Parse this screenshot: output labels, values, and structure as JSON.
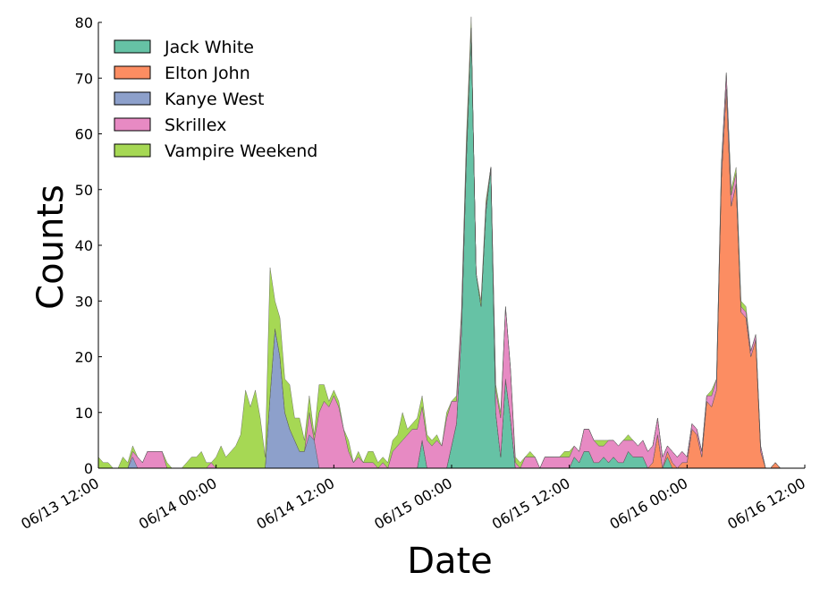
{
  "chart_data": {
    "type": "area",
    "stacked": true,
    "xlabel": "Date",
    "ylabel": "Counts",
    "ylim": [
      0,
      80
    ],
    "xlim": [
      "06/13 12:00",
      "06/16 12:00"
    ],
    "x_start": "06/13 12:00",
    "x_step": "1h",
    "yticks": [
      "0",
      "10",
      "20",
      "30",
      "40",
      "50",
      "60",
      "70",
      "80"
    ],
    "xticks": [
      "06/13 12:00",
      "06/14 00:00",
      "06/14 12:00",
      "06/15 00:00",
      "06/15 12:00",
      "06/16 00:00",
      "06/16 12:00"
    ],
    "legend_position": "top-left",
    "grid": false,
    "series": [
      {
        "name": "Jack White",
        "color": "#66c2a5",
        "values": [
          0,
          0,
          0,
          0,
          0,
          0,
          0,
          0,
          0,
          0,
          0,
          0,
          0,
          0,
          0,
          0,
          0,
          0,
          0,
          0,
          0,
          0,
          0,
          0,
          0,
          0,
          0,
          0,
          0,
          0,
          0,
          0,
          0,
          0,
          0,
          0,
          0,
          0,
          0,
          0,
          0,
          0,
          0,
          0,
          0,
          0,
          0,
          0,
          0,
          0,
          0,
          0,
          0,
          0,
          0,
          0,
          0,
          0,
          0,
          0,
          0,
          0,
          0,
          0,
          0,
          0,
          5,
          0,
          0,
          0,
          0,
          0,
          4,
          8,
          24,
          55,
          79,
          35,
          29,
          46,
          54,
          10,
          2,
          16,
          9,
          0,
          0,
          0,
          0,
          0,
          0,
          0,
          0,
          0,
          0,
          0,
          0,
          2,
          1,
          3,
          3,
          1,
          1,
          2,
          1,
          2,
          1,
          1,
          3,
          2,
          2,
          2,
          0,
          0,
          0,
          0,
          2,
          0,
          0,
          0,
          0,
          0,
          0,
          0,
          0,
          0,
          0,
          0,
          0,
          0,
          0,
          0,
          0,
          0,
          0,
          0,
          0,
          0,
          0,
          0,
          0,
          0,
          0,
          0,
          0
        ]
      },
      {
        "name": "Elton John",
        "color": "#fc8d62",
        "values": [
          0,
          0,
          0,
          0,
          0,
          0,
          0,
          0,
          0,
          0,
          0,
          0,
          0,
          0,
          0,
          0,
          0,
          0,
          0,
          0,
          0,
          0,
          0,
          0,
          0,
          0,
          0,
          0,
          0,
          0,
          0,
          0,
          0,
          0,
          0,
          0,
          0,
          0,
          0,
          0,
          0,
          0,
          0,
          0,
          0,
          0,
          0,
          0,
          0,
          0,
          0,
          0,
          0,
          0,
          0,
          0,
          0,
          0,
          0,
          0,
          0,
          0,
          0,
          0,
          0,
          0,
          0,
          0,
          0,
          0,
          0,
          0,
          0,
          0,
          0,
          0,
          0,
          0,
          0,
          0,
          0,
          0,
          0,
          0,
          0,
          0,
          0,
          0,
          0,
          0,
          0,
          0,
          0,
          0,
          0,
          0,
          0,
          0,
          0,
          0,
          0,
          0,
          0,
          0,
          0,
          0,
          0,
          0,
          0,
          0,
          0,
          0,
          0,
          1,
          6,
          0,
          1,
          1,
          0,
          1,
          1,
          7,
          6,
          2,
          12,
          11,
          14,
          52,
          68,
          47,
          51,
          28,
          27,
          20,
          23,
          3,
          0,
          0,
          1,
          0,
          0,
          0,
          0,
          0,
          0,
          0,
          0,
          0,
          5,
          7
        ]
      },
      {
        "name": "Kanye West",
        "color": "#8da0cb",
        "values": [
          0,
          0,
          0,
          0,
          0,
          0,
          0,
          2,
          0,
          0,
          0,
          0,
          0,
          0,
          0,
          0,
          0,
          0,
          0,
          0,
          0,
          0,
          0,
          0,
          0,
          0,
          0,
          0,
          0,
          0,
          0,
          0,
          0,
          0,
          0,
          13,
          25,
          20,
          10,
          7,
          5,
          3,
          3,
          6,
          5,
          0,
          0,
          0,
          0,
          0,
          0,
          0,
          0,
          0,
          0,
          0,
          0,
          0,
          0,
          0,
          0,
          0,
          0,
          0,
          0,
          0,
          0,
          0,
          0,
          0,
          0,
          0,
          0,
          0,
          0,
          0,
          0,
          0,
          0,
          0,
          0,
          0,
          0,
          0,
          0,
          0,
          0,
          0,
          0,
          0,
          0,
          0,
          0,
          0,
          0,
          0,
          0,
          0,
          0,
          0,
          0,
          0,
          0,
          0,
          0,
          0,
          0,
          0,
          0,
          0,
          0,
          0,
          0,
          0,
          0,
          0,
          0,
          0,
          0,
          0,
          0,
          0,
          0,
          0,
          0,
          0,
          0,
          0,
          0,
          0,
          0,
          0,
          0,
          0,
          0,
          0,
          0,
          0,
          0,
          0,
          0,
          0,
          0,
          0,
          0,
          0,
          0,
          0,
          0,
          0
        ]
      },
      {
        "name": "Skrillex",
        "color": "#e78ac3",
        "values": [
          0,
          0,
          0,
          0,
          0,
          0,
          0,
          1,
          2,
          1,
          3,
          3,
          3,
          3,
          0,
          0,
          0,
          0,
          0,
          0,
          0,
          0,
          0,
          1,
          0,
          0,
          0,
          0,
          0,
          0,
          0,
          0,
          0,
          0,
          0,
          0,
          0,
          0,
          0,
          0,
          0,
          0,
          0,
          4,
          0,
          10,
          12,
          11,
          13,
          11,
          7,
          3,
          1,
          2,
          1,
          1,
          1,
          0,
          1,
          0,
          3,
          4,
          5,
          6,
          7,
          7,
          6,
          5,
          4,
          5,
          4,
          9,
          8,
          4,
          3,
          2,
          0,
          0,
          0,
          1,
          0,
          4,
          7,
          13,
          9,
          1,
          0,
          2,
          2,
          2,
          0,
          2,
          2,
          2,
          2,
          2,
          2,
          2,
          2,
          4,
          4,
          4,
          3,
          2,
          4,
          3,
          3,
          4,
          2,
          3,
          2,
          3,
          3,
          3,
          3,
          2,
          1,
          2,
          2,
          2,
          1,
          1,
          1,
          1,
          1,
          2,
          2,
          2,
          3,
          2,
          2,
          1,
          1,
          1,
          1,
          1,
          0,
          0,
          0,
          0,
          0,
          0,
          0,
          0,
          0
        ]
      },
      {
        "name": "Vampire Weekend",
        "color": "#a6d854",
        "values": [
          2,
          1,
          1,
          0,
          0,
          2,
          1,
          1,
          0,
          0,
          0,
          0,
          0,
          0,
          1,
          0,
          0,
          0,
          1,
          2,
          2,
          3,
          1,
          0,
          2,
          4,
          2,
          3,
          4,
          6,
          14,
          11,
          14,
          9,
          2,
          23,
          5,
          7,
          6,
          8,
          4,
          6,
          2,
          3,
          1,
          5,
          3,
          1,
          1,
          1,
          0,
          2,
          0,
          1,
          0,
          2,
          2,
          1,
          1,
          1,
          2,
          2,
          5,
          1,
          1,
          2,
          2,
          1,
          1,
          1,
          0,
          1,
          0,
          1,
          1,
          2,
          2,
          0,
          1,
          1,
          0,
          1,
          1,
          0,
          0,
          1,
          1,
          0,
          1,
          0,
          0,
          0,
          0,
          0,
          0,
          1,
          1,
          0,
          0,
          0,
          0,
          0,
          1,
          1,
          0,
          0,
          0,
          0,
          1,
          0,
          0,
          0,
          0,
          0,
          0,
          0,
          0,
          0,
          0,
          0,
          0,
          0,
          0,
          0,
          0,
          1,
          0,
          1,
          0,
          1,
          1,
          1,
          1,
          0,
          0,
          0,
          0,
          0,
          0,
          0,
          0,
          0,
          0,
          0,
          0
        ]
      }
    ]
  }
}
